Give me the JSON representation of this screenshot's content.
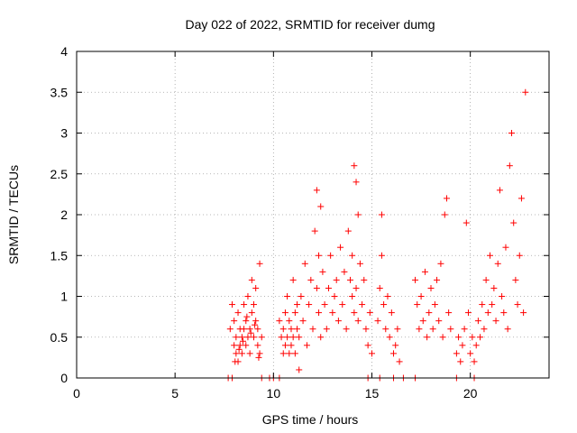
{
  "chart_data": {
    "type": "scatter",
    "title": "Day 022 of 2022, SRMTID for receiver dumg",
    "xlabel": "GPS time / hours",
    "ylabel": "SRMTID / TECUs",
    "xlim": [
      0,
      24
    ],
    "ylim": [
      0,
      4
    ],
    "xticks": [
      "0",
      "5",
      "10",
      "15",
      "20"
    ],
    "yticks": [
      "0",
      "0.5",
      "1",
      "1.5",
      "2",
      "2.5",
      "3",
      "3.5",
      "4"
    ],
    "marker": "plus",
    "color": "#ff0000",
    "grid": true,
    "series": [
      {
        "name": "SRMTID",
        "x": [
          7.8,
          7.9,
          8.0,
          8.0,
          8.1,
          8.1,
          8.2,
          8.2,
          8.3,
          8.3,
          8.4,
          8.4,
          8.5,
          8.5,
          8.6,
          8.6,
          8.7,
          8.7,
          8.8,
          8.8,
          8.9,
          8.9,
          9.0,
          9.0,
          9.1,
          9.1,
          9.2,
          9.2,
          9.3,
          9.3,
          9.4,
          8.05,
          8.25,
          8.45,
          8.65,
          8.85,
          9.05,
          9.25,
          10.3,
          10.4,
          10.5,
          10.5,
          10.6,
          10.6,
          10.7,
          10.7,
          10.8,
          10.8,
          10.9,
          10.9,
          11.0,
          11.0,
          11.1,
          11.1,
          11.2,
          11.2,
          11.3,
          11.3,
          11.4,
          11.5,
          11.6,
          11.7,
          11.8,
          11.9,
          12.0,
          12.1,
          12.2,
          12.2,
          12.3,
          12.3,
          12.4,
          12.4,
          12.5,
          12.6,
          12.7,
          12.8,
          12.9,
          13.0,
          13.1,
          13.2,
          13.3,
          13.4,
          13.5,
          13.6,
          13.7,
          13.8,
          13.9,
          14.0,
          14.0,
          14.1,
          14.1,
          14.2,
          14.2,
          14.3,
          14.3,
          14.4,
          14.5,
          14.6,
          14.7,
          14.8,
          14.9,
          15.0,
          15.3,
          15.4,
          15.5,
          15.5,
          15.6,
          15.7,
          15.8,
          15.9,
          16.0,
          16.1,
          16.2,
          16.3,
          16.4,
          17.2,
          17.3,
          17.4,
          17.5,
          17.6,
          17.7,
          17.8,
          17.9,
          18.0,
          18.1,
          18.2,
          18.3,
          18.4,
          18.5,
          18.6,
          18.7,
          18.8,
          18.9,
          19.0,
          19.3,
          19.4,
          19.5,
          19.6,
          19.7,
          19.8,
          19.9,
          20.0,
          20.1,
          20.2,
          20.3,
          20.4,
          20.5,
          20.6,
          20.7,
          20.8,
          20.9,
          21.0,
          21.1,
          21.2,
          21.3,
          21.4,
          21.5,
          21.6,
          21.7,
          21.8,
          21.9,
          22.0,
          22.1,
          22.2,
          22.3,
          22.4,
          22.5,
          22.6,
          22.7,
          22.8,
          7.7,
          7.9,
          9.4,
          9.8,
          10.0,
          10.3,
          14.8,
          15.4,
          16.1,
          16.6,
          17.2,
          19.3,
          20.2
        ],
        "y": [
          0.6,
          0.9,
          0.4,
          0.7,
          0.3,
          0.5,
          0.8,
          0.2,
          0.6,
          0.4,
          0.5,
          0.3,
          0.9,
          0.6,
          0.7,
          0.4,
          0.5,
          1.0,
          0.3,
          0.6,
          1.2,
          0.8,
          0.5,
          0.9,
          0.7,
          1.1,
          0.4,
          0.6,
          0.3,
          1.4,
          0.5,
          0.2,
          0.35,
          0.45,
          0.75,
          0.55,
          0.65,
          0.25,
          0.7,
          0.5,
          0.3,
          0.6,
          0.4,
          0.8,
          0.5,
          1.0,
          0.3,
          0.7,
          0.6,
          0.4,
          1.2,
          0.5,
          0.8,
          0.3,
          0.6,
          0.9,
          0.1,
          0.5,
          1.0,
          0.7,
          1.4,
          0.4,
          0.9,
          1.2,
          0.6,
          1.8,
          2.3,
          1.1,
          0.8,
          1.5,
          2.1,
          0.5,
          1.3,
          0.9,
          0.6,
          1.1,
          1.5,
          0.8,
          1.0,
          1.2,
          0.7,
          1.6,
          0.9,
          1.3,
          0.6,
          1.8,
          1.2,
          1.0,
          1.5,
          2.6,
          0.8,
          2.4,
          1.1,
          2.0,
          0.7,
          1.4,
          0.9,
          1.2,
          0.6,
          0.4,
          0.8,
          0.3,
          0.7,
          1.1,
          2.0,
          1.5,
          0.9,
          0.6,
          1.0,
          0.5,
          0.8,
          0.3,
          0.4,
          0.6,
          0.2,
          1.2,
          0.9,
          0.6,
          1.0,
          0.7,
          1.3,
          0.5,
          0.8,
          1.1,
          0.6,
          0.9,
          1.2,
          0.7,
          1.4,
          0.5,
          2.0,
          2.2,
          0.8,
          0.6,
          0.3,
          0.5,
          0.2,
          0.4,
          0.6,
          1.9,
          0.8,
          0.3,
          0.5,
          0.2,
          0.4,
          0.7,
          0.5,
          0.9,
          0.6,
          1.2,
          0.8,
          1.5,
          0.9,
          1.1,
          0.7,
          1.4,
          2.3,
          1.0,
          0.8,
          1.6,
          0.6,
          2.6,
          3.0,
          1.9,
          1.2,
          0.9,
          1.5,
          2.2,
          0.8,
          3.5,
          0,
          0,
          0,
          0,
          0,
          0,
          0,
          0,
          0,
          0,
          0,
          0,
          0
        ]
      }
    ]
  }
}
